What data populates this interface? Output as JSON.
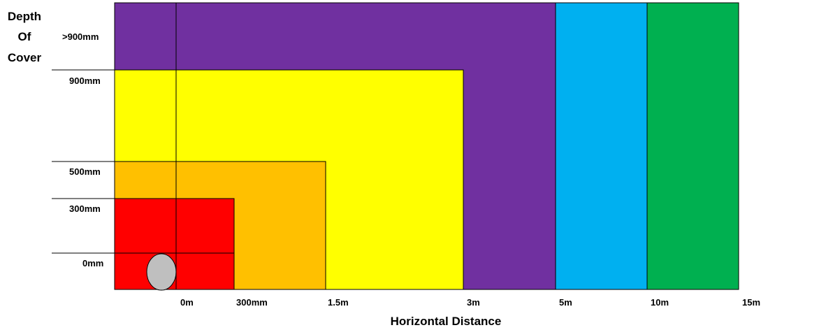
{
  "y_axis": {
    "title_lines": [
      "Depth",
      "Of",
      "Cover"
    ],
    "ticks": [
      "0mm",
      "300mm",
      "500mm",
      "900mm",
      ">900mm"
    ]
  },
  "x_axis": {
    "title": "Horizontal Distance",
    "ticks": [
      "0m",
      "300mm",
      "1.5m",
      "3m",
      "5m",
      "10m",
      "15m"
    ]
  },
  "zones": [
    {
      "color": "#7030A0",
      "horizontal": "5m",
      "depth": ">900mm"
    },
    {
      "color": "#00B0F0",
      "horizontal": "10m",
      "depth": ">900mm"
    },
    {
      "color": "#00B050",
      "horizontal": "15m",
      "depth": ">900mm"
    },
    {
      "color": "#FFFF00",
      "horizontal": "3m",
      "depth": "900mm"
    },
    {
      "color": "#FFC000",
      "horizontal": "1.5m",
      "depth": "500mm"
    },
    {
      "color": "#FF0000",
      "horizontal": "300mm",
      "depth": "300mm"
    }
  ],
  "pipe": {
    "color": "#BFBFBF",
    "icon": "pipe-cross-section-icon"
  }
}
